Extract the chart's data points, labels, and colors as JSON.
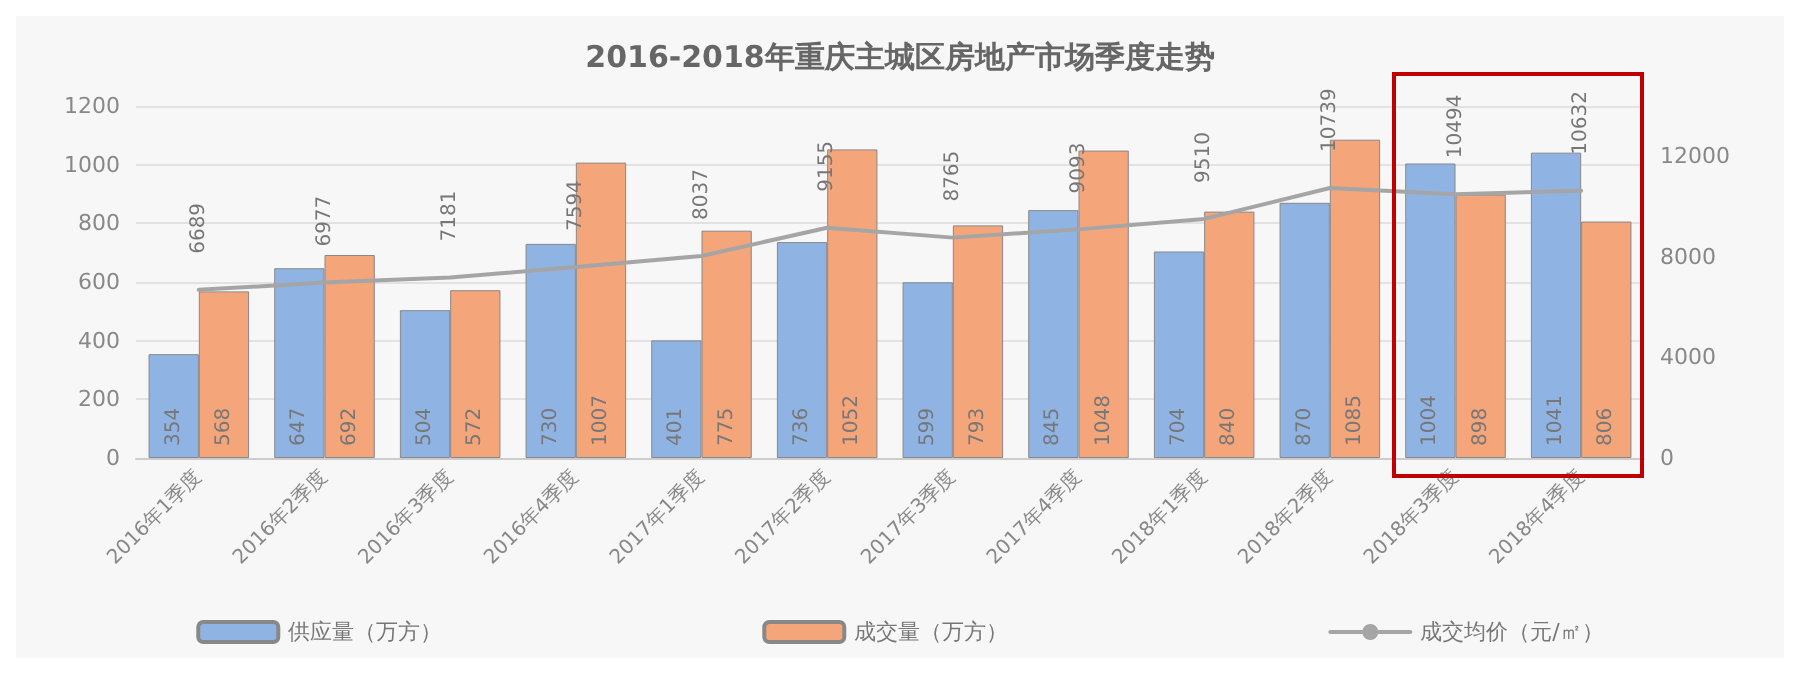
{
  "chart_data": {
    "type": "bar",
    "title": "2016-2018年重庆主城区房地产市场季度走势",
    "categories": [
      "2016年1季度",
      "2016年2季度",
      "2016年3季度",
      "2016年4季度",
      "2017年1季度",
      "2017年2季度",
      "2017年3季度",
      "2017年4季度",
      "2018年1季度",
      "2018年2季度",
      "2018年3季度",
      "2018年4季度"
    ],
    "series": [
      {
        "name": "供应量（万方）",
        "color": "#8fb4e3",
        "values": [
          354,
          647,
          504,
          730,
          401,
          736,
          599,
          845,
          704,
          870,
          1004,
          1041
        ]
      },
      {
        "name": "成交量（万方）",
        "color": "#f5a57a",
        "values": [
          568,
          692,
          572,
          1007,
          775,
          1052,
          793,
          1048,
          840,
          1085,
          898,
          806
        ]
      },
      {
        "name": "成交均价（元/㎡）",
        "type": "line",
        "axis": "y2",
        "color": "#a5a5a5",
        "values": [
          6689,
          6977,
          7181,
          7594,
          8037,
          9155,
          8765,
          9093,
          9510,
          10739,
          10494,
          10632
        ]
      }
    ],
    "ylim": [
      0,
      1200
    ],
    "yticks": [
      0,
      200,
      400,
      600,
      800,
      1000,
      1200
    ],
    "y2lim": [
      0,
      14000
    ],
    "y2ticks": [
      0,
      4000,
      8000,
      12000
    ],
    "data_labels": true,
    "grid": "y",
    "legend": "bottom",
    "marker": "none",
    "line_style": "solid"
  }
}
